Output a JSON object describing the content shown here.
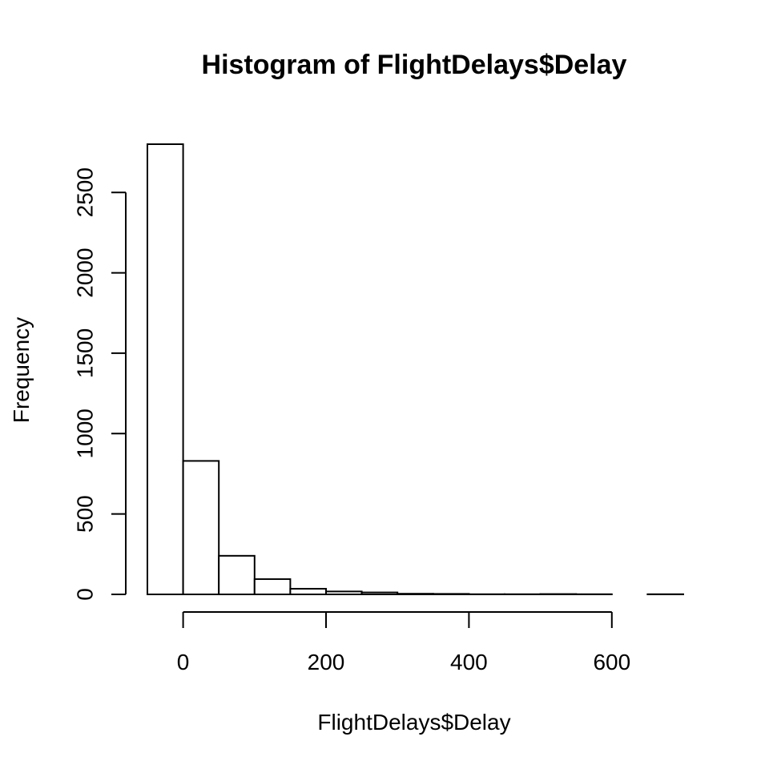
{
  "chart_data": {
    "type": "bar",
    "title": "Histogram of FlightDelays$Delay",
    "xlabel": "FlightDelays$Delay",
    "ylabel": "Frequency",
    "bin_edges": [
      -50,
      0,
      50,
      100,
      150,
      200,
      250,
      300,
      350,
      400,
      450,
      500,
      550,
      600,
      650,
      700
    ],
    "values": [
      2800,
      830,
      240,
      95,
      35,
      18,
      12,
      4,
      3,
      1,
      1,
      2,
      1,
      0,
      1
    ],
    "xlim": [
      -50,
      700
    ],
    "ylim": [
      0,
      2800
    ],
    "x_ticks": [
      0,
      200,
      400,
      600
    ],
    "y_ticks": [
      0,
      500,
      1000,
      1500,
      2000,
      2500
    ],
    "grid": false
  }
}
